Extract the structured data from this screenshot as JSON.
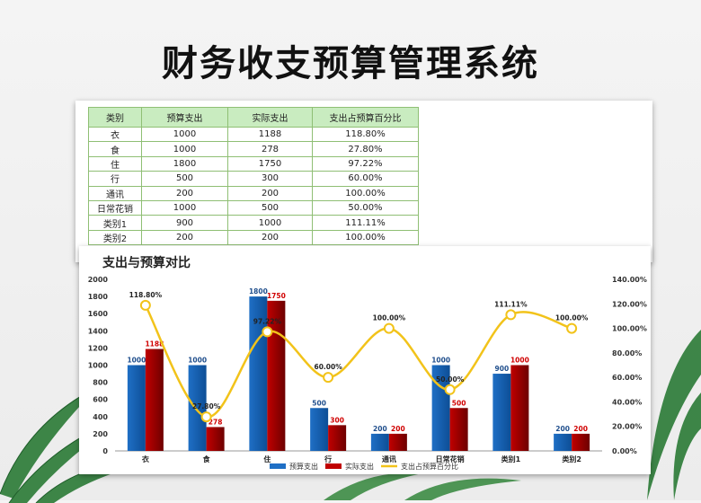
{
  "page": {
    "title": "财务收支预算管理系统"
  },
  "table": {
    "headers": [
      "类别",
      "预算支出",
      "实际支出",
      "支出占预算百分比"
    ],
    "rows": [
      [
        "衣",
        "1000",
        "1188",
        "118.80%"
      ],
      [
        "食",
        "1000",
        "278",
        "27.80%"
      ],
      [
        "住",
        "1800",
        "1750",
        "97.22%"
      ],
      [
        "行",
        "500",
        "300",
        "60.00%"
      ],
      [
        "通讯",
        "200",
        "200",
        "100.00%"
      ],
      [
        "日常花销",
        "1000",
        "500",
        "50.00%"
      ],
      [
        "类别1",
        "900",
        "1000",
        "111.11%"
      ],
      [
        "类别2",
        "200",
        "200",
        "100.00%"
      ]
    ]
  },
  "chart_data": {
    "type": "bar",
    "title": "支出与预算对比",
    "categories": [
      "衣",
      "食",
      "住",
      "行",
      "通讯",
      "日常花销",
      "类别1",
      "类别2"
    ],
    "series": [
      {
        "name": "预算支出",
        "kind": "bar",
        "axis": "left",
        "color": "#1f6fc5",
        "values": [
          1000,
          1000,
          1800,
          500,
          200,
          1000,
          900,
          200
        ],
        "labels": [
          "1000",
          "1000",
          "1800",
          "500",
          "200",
          "1000",
          "900",
          "200"
        ]
      },
      {
        "name": "实际支出",
        "kind": "bar",
        "axis": "left",
        "color": "#c00000",
        "values": [
          1188,
          278,
          1750,
          300,
          200,
          500,
          1000,
          200
        ],
        "labels": [
          "1188",
          "278",
          "1750",
          "300",
          "200",
          "500",
          "1000",
          "200"
        ]
      },
      {
        "name": "支出占预算百分比",
        "kind": "line",
        "axis": "right",
        "color": "#f2c31a",
        "values": [
          118.8,
          27.8,
          97.22,
          60.0,
          100.0,
          50.0,
          111.11,
          100.0
        ],
        "labels": [
          "118.80%",
          "27.80%",
          "97.22%",
          "60.00%",
          "100.00%",
          "50.00%",
          "111.11%",
          "100.00%"
        ]
      }
    ],
    "ylim": [
      0,
      2000
    ],
    "yticks": [
      "0",
      "200",
      "400",
      "600",
      "800",
      "1000",
      "1200",
      "1400",
      "1600",
      "1800",
      "2000"
    ],
    "y2lim": [
      0,
      140
    ],
    "y2ticks": [
      "0.00%",
      "20.00%",
      "40.00%",
      "60.00%",
      "80.00%",
      "100.00%",
      "120.00%",
      "140.00%"
    ],
    "grid": false,
    "legend_position": "bottom"
  }
}
